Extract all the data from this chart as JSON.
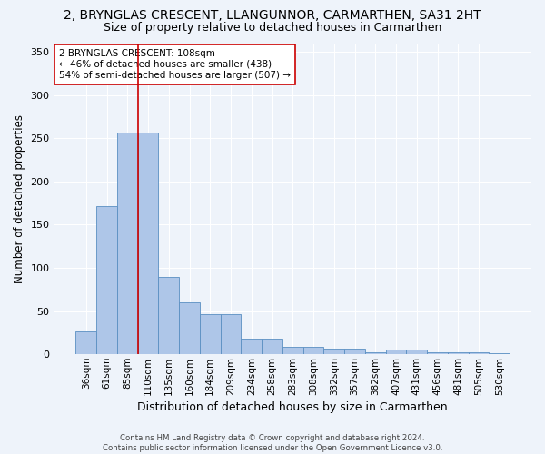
{
  "title": "2, BRYNGLAS CRESCENT, LLANGUNNOR, CARMARTHEN, SA31 2HT",
  "subtitle": "Size of property relative to detached houses in Carmarthen",
  "xlabel": "Distribution of detached houses by size in Carmarthen",
  "ylabel": "Number of detached properties",
  "categories": [
    "36sqm",
    "61sqm",
    "85sqm",
    "110sqm",
    "135sqm",
    "160sqm",
    "184sqm",
    "209sqm",
    "234sqm",
    "258sqm",
    "283sqm",
    "308sqm",
    "332sqm",
    "357sqm",
    "382sqm",
    "407sqm",
    "431sqm",
    "456sqm",
    "481sqm",
    "505sqm",
    "530sqm"
  ],
  "values": [
    26,
    171,
    257,
    257,
    89,
    60,
    46,
    46,
    18,
    18,
    9,
    9,
    6,
    6,
    2,
    5,
    5,
    2,
    2,
    2,
    1
  ],
  "bar_color": "#aec6e8",
  "bar_edge_color": "#5a8fc2",
  "property_line_x": 2.5,
  "property_line_color": "#cc0000",
  "annotation_text": "2 BRYNGLAS CRESCENT: 108sqm\n← 46% of detached houses are smaller (438)\n54% of semi-detached houses are larger (507) →",
  "annotation_box_color": "#ffffff",
  "annotation_box_edge_color": "#cc0000",
  "footer": "Contains HM Land Registry data © Crown copyright and database right 2024.\nContains public sector information licensed under the Open Government Licence v3.0.",
  "background_color": "#eef3fa",
  "plot_background_color": "#eef3fa",
  "ylim": [
    0,
    360
  ],
  "yticks": [
    0,
    50,
    100,
    150,
    200,
    250,
    300,
    350
  ],
  "grid_color": "#ffffff",
  "title_fontsize": 10,
  "subtitle_fontsize": 9,
  "tick_fontsize": 7.5,
  "ylabel_fontsize": 8.5,
  "xlabel_fontsize": 9
}
